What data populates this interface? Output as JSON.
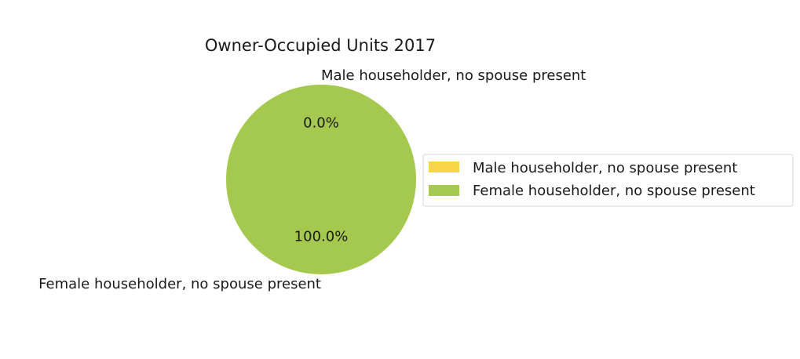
{
  "chart_data": {
    "type": "pie",
    "title": "Owner-Occupied Units 2017",
    "categories": [
      "Male householder, no spouse present",
      "Female householder, no spouse present"
    ],
    "values": [
      0.0,
      100.0
    ],
    "percent_labels": [
      "0.0%",
      "100.0%"
    ],
    "colors": [
      "#f7d547",
      "#a5c84f"
    ],
    "start_angle_deg": 90,
    "legend": {
      "placement": "right",
      "entries": [
        "Male householder, no spouse present",
        "Female householder, no spouse present"
      ]
    }
  }
}
